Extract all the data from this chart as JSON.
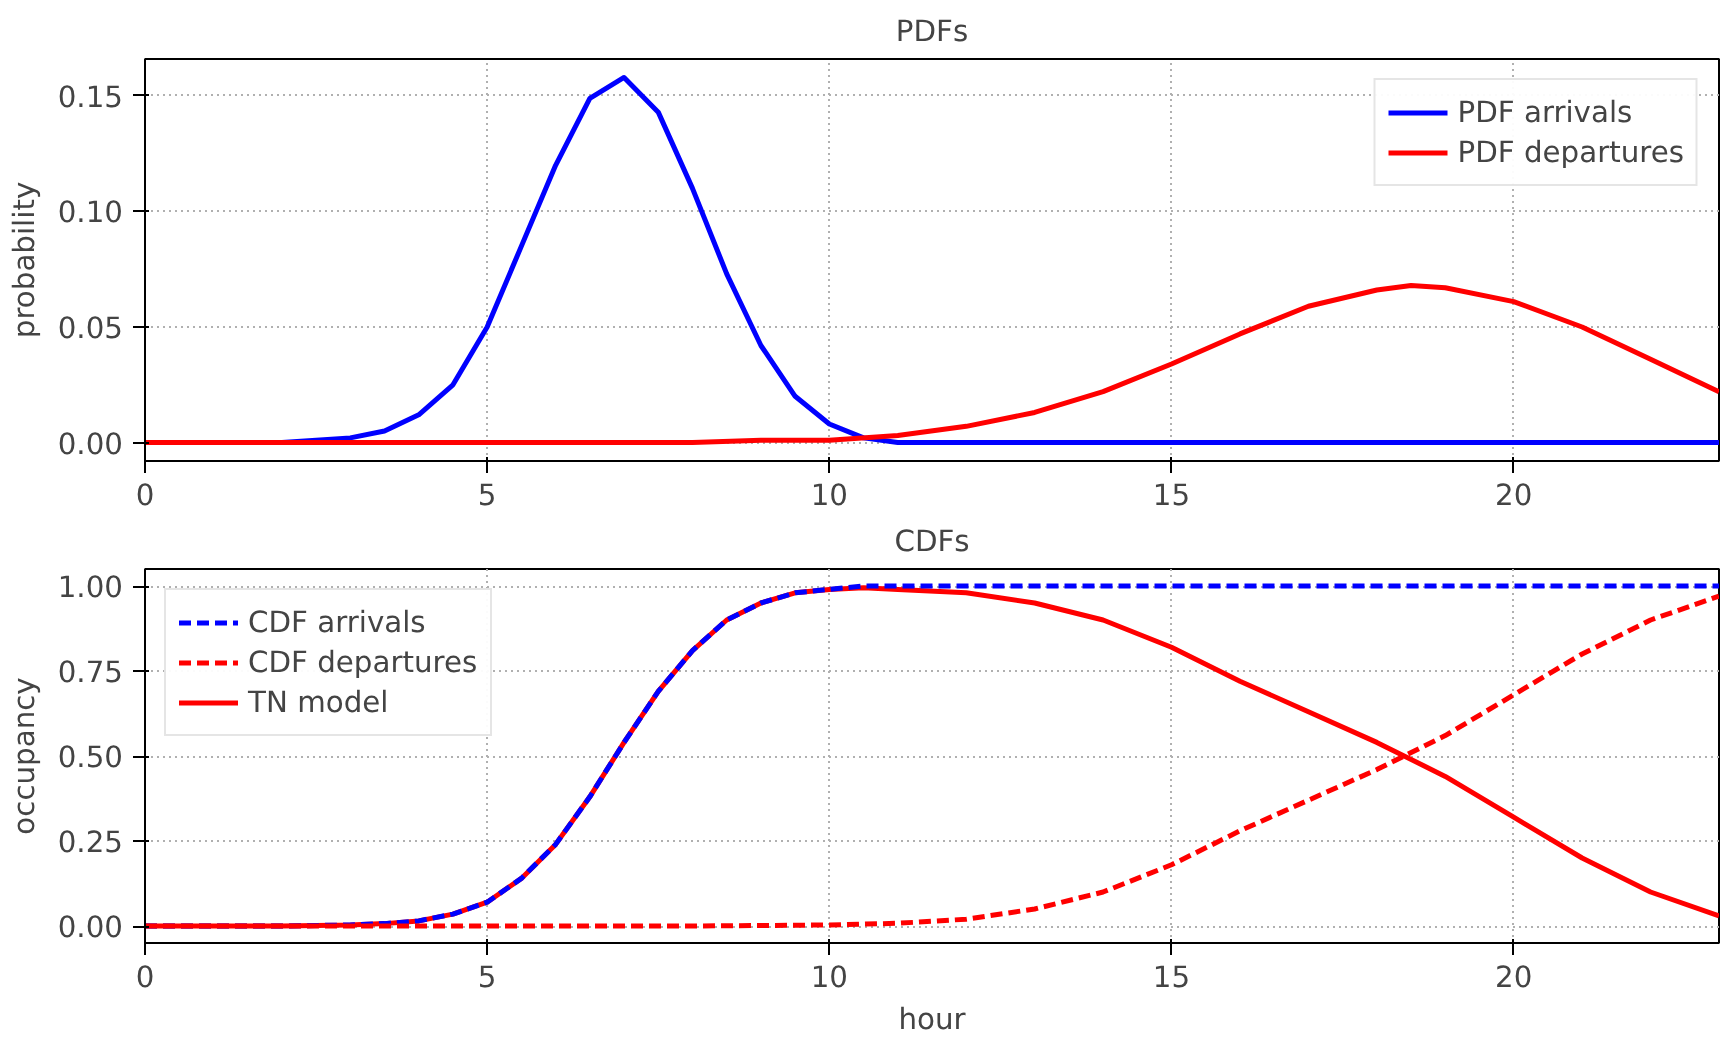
{
  "chart_data": [
    {
      "type": "line",
      "title": "PDFs",
      "ylabel": "probability",
      "xlim": [
        0,
        23
      ],
      "xticks": [
        0,
        5,
        10,
        15,
        20
      ],
      "ylim": [
        -0.008,
        0.166
      ],
      "yticks": [
        {
          "value": 0,
          "label": "0.00"
        },
        {
          "value": 0.05,
          "label": "0.05"
        },
        {
          "value": 0.1,
          "label": "0.10"
        },
        {
          "value": 0.15,
          "label": "0.15"
        }
      ],
      "grid": true,
      "legend": "top right",
      "marker": "none",
      "series": [
        {
          "name": "PDF arrivals",
          "color": "#0000ff",
          "line_style": "solid",
          "x": [
            0,
            1,
            2,
            2.5,
            3,
            3.5,
            4,
            4.5,
            5,
            5.5,
            6,
            6.5,
            7,
            7.5,
            8,
            8.5,
            9,
            9.5,
            10,
            10.5,
            11,
            12,
            15,
            20,
            23
          ],
          "values": [
            0,
            0,
            0,
            0.001,
            0.002,
            0.005,
            0.012,
            0.025,
            0.05,
            0.085,
            0.12,
            0.149,
            0.158,
            0.143,
            0.11,
            0.073,
            0.042,
            0.02,
            0.008,
            0.002,
            0,
            0,
            0,
            0,
            0
          ]
        },
        {
          "name": "PDF departures",
          "color": "#ff0000",
          "line_style": "solid",
          "x": [
            0,
            5,
            8,
            9,
            10,
            11,
            12,
            13,
            14,
            15,
            16,
            17,
            18,
            18.5,
            19,
            20,
            21,
            22,
            23
          ],
          "values": [
            0,
            0,
            0,
            0.001,
            0.001,
            0.003,
            0.007,
            0.013,
            0.022,
            0.034,
            0.047,
            0.059,
            0.066,
            0.068,
            0.067,
            0.061,
            0.05,
            0.036,
            0.022
          ]
        }
      ]
    },
    {
      "type": "line",
      "title": "CDFs",
      "xlabel": "hour",
      "ylabel": "occupancy",
      "xlim": [
        0,
        23
      ],
      "xticks": [
        0,
        5,
        10,
        15,
        20
      ],
      "ylim": [
        -0.05,
        1.05
      ],
      "yticks": [
        {
          "value": 0,
          "label": "0.00"
        },
        {
          "value": 0.25,
          "label": "0.25"
        },
        {
          "value": 0.5,
          "label": "0.50"
        },
        {
          "value": 0.75,
          "label": "0.75"
        },
        {
          "value": 1,
          "label": "1.00"
        }
      ],
      "grid": true,
      "legend": "top left",
      "marker": "none",
      "series": [
        {
          "name": "CDF arrivals",
          "color": "#0000ff",
          "line_style": "dashed",
          "x": [
            0,
            2,
            3,
            3.5,
            4,
            4.5,
            5,
            5.5,
            6,
            6.5,
            7,
            7.5,
            8,
            8.5,
            9,
            9.5,
            10,
            10.5,
            11,
            23
          ],
          "values": [
            0,
            0,
            0.003,
            0.007,
            0.015,
            0.035,
            0.07,
            0.14,
            0.24,
            0.38,
            0.54,
            0.69,
            0.81,
            0.9,
            0.95,
            0.98,
            0.99,
            1,
            1,
            1
          ]
        },
        {
          "name": "CDF departures",
          "color": "#ff0000",
          "line_style": "dashed",
          "x": [
            0,
            8,
            10,
            11,
            12,
            13,
            14,
            15,
            16,
            17,
            18,
            19,
            20,
            21,
            22,
            23
          ],
          "values": [
            0,
            0,
            0.003,
            0.008,
            0.02,
            0.05,
            0.1,
            0.18,
            0.28,
            0.37,
            0.46,
            0.56,
            0.68,
            0.8,
            0.9,
            0.97
          ]
        },
        {
          "name": "TN model",
          "color": "#ff0000",
          "line_style": "solid",
          "x": [
            0,
            2,
            3,
            3.5,
            4,
            4.5,
            5,
            5.5,
            6,
            6.5,
            7,
            7.5,
            8,
            8.5,
            9,
            9.5,
            10,
            10.5,
            11,
            12,
            13,
            14,
            15,
            16,
            17,
            18,
            19,
            20,
            21,
            22,
            23
          ],
          "values": [
            0,
            0,
            0.003,
            0.007,
            0.015,
            0.035,
            0.07,
            0.14,
            0.24,
            0.38,
            0.54,
            0.69,
            0.81,
            0.9,
            0.95,
            0.98,
            0.99,
            0.995,
            0.99,
            0.98,
            0.95,
            0.9,
            0.82,
            0.72,
            0.63,
            0.54,
            0.44,
            0.32,
            0.2,
            0.1,
            0.03
          ]
        }
      ]
    }
  ]
}
